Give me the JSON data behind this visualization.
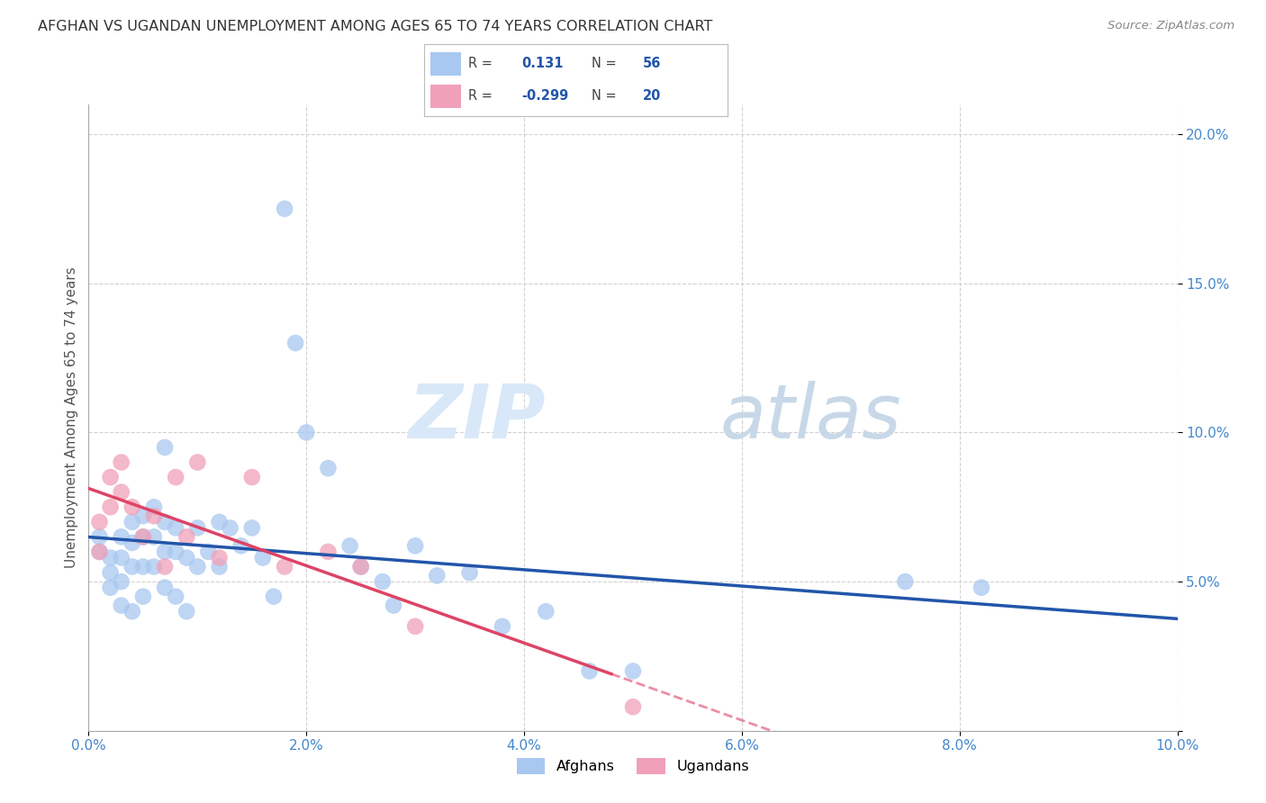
{
  "title": "AFGHAN VS UGANDAN UNEMPLOYMENT AMONG AGES 65 TO 74 YEARS CORRELATION CHART",
  "source": "Source: ZipAtlas.com",
  "ylabel": "Unemployment Among Ages 65 to 74 years",
  "xlim": [
    0.0,
    0.1
  ],
  "ylim": [
    0.0,
    0.21
  ],
  "x_ticks": [
    0.0,
    0.02,
    0.04,
    0.06,
    0.08,
    0.1
  ],
  "y_ticks": [
    0.0,
    0.05,
    0.1,
    0.15,
    0.2
  ],
  "x_tick_labels": [
    "0.0%",
    "2.0%",
    "4.0%",
    "6.0%",
    "8.0%",
    "10.0%"
  ],
  "y_tick_labels": [
    "",
    "5.0%",
    "10.0%",
    "15.0%",
    "20.0%"
  ],
  "afghan_R": "0.131",
  "afghan_N": "56",
  "ugandan_R": "-0.299",
  "ugandan_N": "20",
  "afghan_color": "#A8C8F0",
  "ugandan_color": "#F0A0B8",
  "afghan_line_color": "#2255AA",
  "ugandan_line_color": "#DD4466",
  "background_color": "#FFFFFF",
  "grid_color": "#CCCCCC",
  "watermark_zip": "ZIP",
  "watermark_atlas": "atlas",
  "afghans_x": [
    0.001,
    0.001,
    0.002,
    0.002,
    0.002,
    0.003,
    0.003,
    0.003,
    0.003,
    0.004,
    0.004,
    0.004,
    0.004,
    0.005,
    0.005,
    0.005,
    0.005,
    0.006,
    0.006,
    0.006,
    0.007,
    0.007,
    0.007,
    0.007,
    0.008,
    0.008,
    0.008,
    0.009,
    0.009,
    0.01,
    0.01,
    0.011,
    0.012,
    0.012,
    0.013,
    0.014,
    0.015,
    0.016,
    0.017,
    0.018,
    0.019,
    0.02,
    0.022,
    0.024,
    0.025,
    0.027,
    0.028,
    0.03,
    0.032,
    0.035,
    0.038,
    0.042,
    0.046,
    0.05,
    0.075,
    0.082
  ],
  "afghans_y": [
    0.065,
    0.06,
    0.058,
    0.053,
    0.048,
    0.065,
    0.058,
    0.05,
    0.042,
    0.07,
    0.063,
    0.055,
    0.04,
    0.072,
    0.065,
    0.055,
    0.045,
    0.075,
    0.065,
    0.055,
    0.095,
    0.07,
    0.06,
    0.048,
    0.068,
    0.06,
    0.045,
    0.058,
    0.04,
    0.068,
    0.055,
    0.06,
    0.07,
    0.055,
    0.068,
    0.062,
    0.068,
    0.058,
    0.045,
    0.175,
    0.13,
    0.1,
    0.088,
    0.062,
    0.055,
    0.05,
    0.042,
    0.062,
    0.052,
    0.053,
    0.035,
    0.04,
    0.02,
    0.02,
    0.05,
    0.048
  ],
  "ugandans_x": [
    0.001,
    0.001,
    0.002,
    0.002,
    0.003,
    0.003,
    0.004,
    0.005,
    0.006,
    0.007,
    0.008,
    0.009,
    0.01,
    0.012,
    0.015,
    0.018,
    0.022,
    0.025,
    0.03,
    0.05
  ],
  "ugandans_y": [
    0.07,
    0.06,
    0.085,
    0.075,
    0.09,
    0.08,
    0.075,
    0.065,
    0.072,
    0.055,
    0.085,
    0.065,
    0.09,
    0.058,
    0.085,
    0.055,
    0.06,
    0.055,
    0.035,
    0.008
  ]
}
